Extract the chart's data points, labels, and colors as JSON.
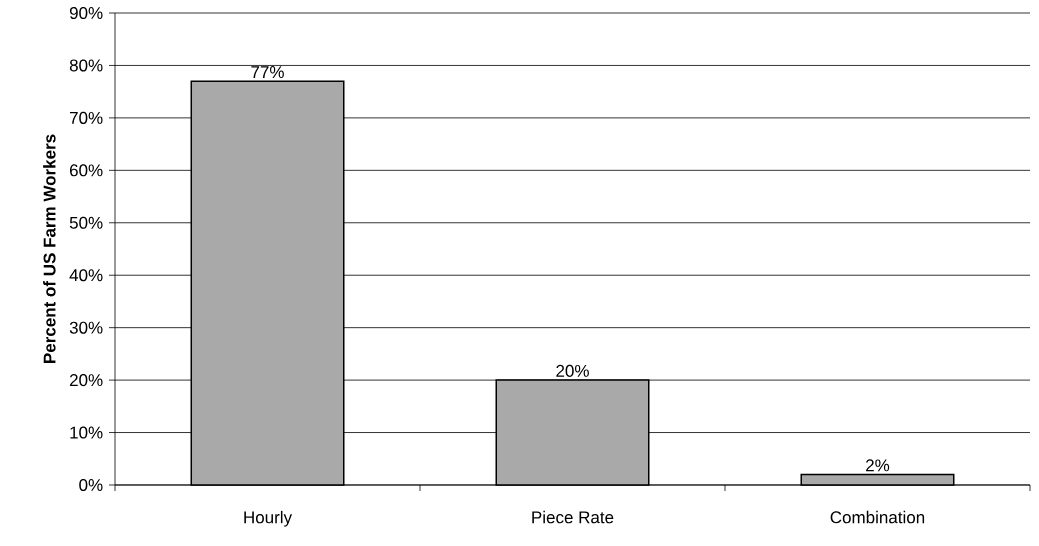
{
  "chart_data": {
    "type": "bar",
    "ylabel": "**Percent of US Farm Workers**",
    "categories": [
      "Hourly",
      "Piece Rate",
      "Combination"
    ],
    "values": [
      77,
      20,
      2
    ],
    "color": "#a9a9a9",
    "value_labels": [
      "77%",
      "20%",
      "2%"
    ],
    "ylim": [
      0,
      90
    ],
    "yticks": [
      {
        "value": 0,
        "label": "0%"
      },
      {
        "value": 10,
        "label": "10%"
      },
      {
        "value": 20,
        "label": "20%"
      },
      {
        "value": 30,
        "label": "30%"
      },
      {
        "value": 40,
        "label": "40%"
      },
      {
        "value": 50,
        "label": "50%"
      },
      {
        "value": 60,
        "label": "60%"
      },
      {
        "value": 70,
        "label": "70%"
      },
      {
        "value": 80,
        "label": "80%"
      },
      {
        "value": 90,
        "label": "90%"
      }
    ],
    "grid": "y"
  }
}
